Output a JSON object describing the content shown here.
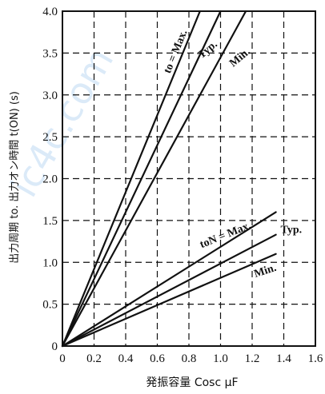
{
  "chart_data": {
    "type": "line",
    "xlabel": "発振容量  Cosc  μF",
    "ylabel": "出力周期  to.  出力オン時間  t(ON)  (s)",
    "xlim": [
      0,
      1.6
    ],
    "ylim": [
      0,
      4.0
    ],
    "grid": true,
    "xticks": [
      "0",
      "0.2",
      "0.4",
      "0.6",
      "0.8",
      "1.0",
      "1.2",
      "1.4",
      "1.6"
    ],
    "yticks": [
      "0",
      "0.5",
      "1.0",
      "1.5",
      "2.0",
      "2.5",
      "3.0",
      "3.5",
      "4.0"
    ],
    "series": [
      {
        "name": "to = Max.",
        "x": [
          0,
          0.87
        ],
        "y": [
          0,
          4.0
        ]
      },
      {
        "name": "Typ.",
        "x": [
          0,
          1.0
        ],
        "y": [
          0,
          4.0
        ]
      },
      {
        "name": "Min.",
        "x": [
          0,
          1.16
        ],
        "y": [
          0,
          4.0
        ]
      },
      {
        "name": "toN = Max.",
        "x": [
          0,
          1.35
        ],
        "y": [
          0,
          1.6
        ]
      },
      {
        "name": "Typ.",
        "x": [
          0,
          1.35
        ],
        "y": [
          0,
          1.33
        ]
      },
      {
        "name": "Min.",
        "x": [
          0,
          1.35
        ],
        "y": [
          0,
          1.1
        ]
      }
    ],
    "annotations": [
      {
        "text": "to = Max.",
        "x": 0.68,
        "y": 3.25,
        "angle": -68
      },
      {
        "text": "Typ.",
        "x": 0.88,
        "y": 3.43,
        "angle": -40
      },
      {
        "text": "Min.",
        "x": 1.08,
        "y": 3.33,
        "angle": -40
      },
      {
        "text": "toN = Max.",
        "x": 0.88,
        "y": 1.17,
        "angle": -22
      },
      {
        "text": "Typ.",
        "x": 1.38,
        "y": 1.35,
        "angle": 0
      },
      {
        "text": "Min.",
        "x": 1.22,
        "y": 0.82,
        "angle": -18
      }
    ]
  },
  "watermark": "ic4c.com"
}
